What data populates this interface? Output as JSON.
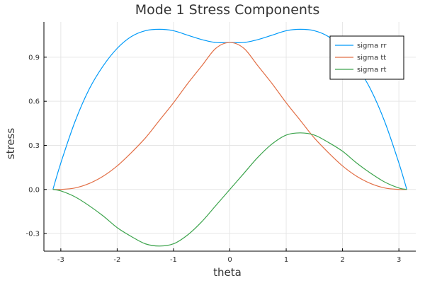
{
  "chart_data": {
    "type": "line",
    "title": "Mode 1 Stress Components",
    "xlabel": "theta",
    "ylabel": "stress",
    "xlim": [
      -3.3,
      3.3
    ],
    "ylim": [
      -0.42,
      1.14
    ],
    "xticks": [
      -3,
      -2,
      -1,
      0,
      1,
      2,
      3
    ],
    "xtick_labels": [
      "-3",
      "-2",
      "-1",
      "0",
      "1",
      "2",
      "3"
    ],
    "yticks": [
      -0.3,
      0.0,
      0.3,
      0.6,
      0.9
    ],
    "ytick_labels": [
      "-0.3",
      "0.0",
      "0.3",
      "0.6",
      "0.9"
    ],
    "grid": true,
    "legend_position": "top-right",
    "x": [
      -3.14,
      -3.0,
      -2.75,
      -2.5,
      -2.25,
      -2.0,
      -1.75,
      -1.5,
      -1.25,
      -1.0,
      -0.75,
      -0.5,
      -0.25,
      0.0,
      0.25,
      0.5,
      0.75,
      1.0,
      1.25,
      1.5,
      1.75,
      2.0,
      2.25,
      2.5,
      2.75,
      3.0,
      3.14
    ],
    "series": [
      {
        "name": "sigma rr",
        "color": "#009af9",
        "values": [
          0.0,
          0.18,
          0.46,
          0.68,
          0.84,
          0.96,
          1.04,
          1.08,
          1.09,
          1.08,
          1.05,
          1.02,
          1.0,
          1.0,
          1.0,
          1.02,
          1.05,
          1.08,
          1.09,
          1.08,
          1.04,
          0.96,
          0.84,
          0.68,
          0.46,
          0.18,
          0.0
        ]
      },
      {
        "name": "sigma tt",
        "color": "#e26f46",
        "values": [
          0.0,
          0.0,
          0.01,
          0.04,
          0.09,
          0.16,
          0.25,
          0.35,
          0.47,
          0.59,
          0.72,
          0.84,
          0.96,
          1.0,
          0.96,
          0.84,
          0.72,
          0.59,
          0.47,
          0.35,
          0.25,
          0.16,
          0.09,
          0.04,
          0.01,
          0.0,
          0.0
        ]
      },
      {
        "name": "sigma rt",
        "color": "#3da44d",
        "values": [
          0.0,
          -0.01,
          -0.05,
          -0.11,
          -0.18,
          -0.26,
          -0.32,
          -0.37,
          -0.385,
          -0.37,
          -0.31,
          -0.22,
          -0.11,
          0.0,
          0.11,
          0.22,
          0.31,
          0.37,
          0.385,
          0.37,
          0.32,
          0.26,
          0.18,
          0.11,
          0.05,
          0.01,
          0.0
        ]
      }
    ]
  }
}
